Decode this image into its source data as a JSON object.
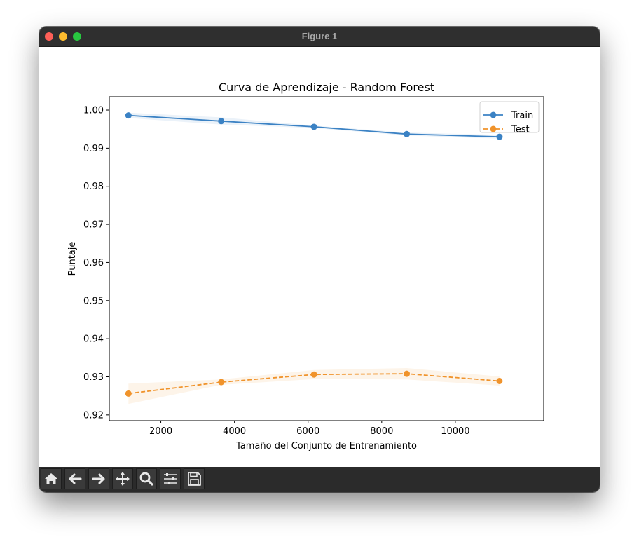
{
  "window": {
    "title": "Figure 1"
  },
  "toolbar": {
    "buttons": [
      {
        "name": "home-button",
        "icon": "home-icon"
      },
      {
        "name": "back-button",
        "icon": "arrow-left-icon"
      },
      {
        "name": "forward-button",
        "icon": "arrow-right-icon"
      },
      {
        "name": "pan-button",
        "icon": "move-icon"
      },
      {
        "name": "zoom-button",
        "icon": "magnifier-icon"
      },
      {
        "name": "configure-subplots-button",
        "icon": "sliders-icon"
      },
      {
        "name": "save-button",
        "icon": "floppy-disk-icon"
      }
    ]
  },
  "chart_data": {
    "type": "line",
    "title": "Curva de Aprendizaje - Random Forest",
    "xlabel": "Tamaño del Conjunto de Entrenamiento",
    "ylabel": "Puntaje",
    "xlim": [
      600,
      12400
    ],
    "ylim": [
      0.9185,
      1.0035
    ],
    "x_ticks": [
      2000,
      4000,
      6000,
      8000,
      10000
    ],
    "y_ticks": [
      0.92,
      0.93,
      0.94,
      0.95,
      0.96,
      0.97,
      0.98,
      0.99,
      1.0
    ],
    "y_tick_labels": [
      "0.92",
      "0.93",
      "0.94",
      "0.95",
      "0.96",
      "0.97",
      "0.98",
      "0.99",
      "1.00"
    ],
    "grid": false,
    "legend_position": "top-right",
    "x": [
      1120,
      3640,
      6160,
      8680,
      11200
    ],
    "series": [
      {
        "name": "Train",
        "color": "#3b82c4",
        "line_style": "solid",
        "marker": "circle",
        "values": [
          0.9986,
          0.9971,
          0.9956,
          0.9937,
          0.993
        ],
        "band_lower": [
          0.9979,
          0.9962,
          0.9953,
          0.9933,
          0.9925
        ],
        "band_upper": [
          0.9993,
          0.9981,
          0.9959,
          0.9941,
          0.9935
        ]
      },
      {
        "name": "Test",
        "color": "#f0932b",
        "line_style": "dashed",
        "marker": "circle",
        "values": [
          0.9256,
          0.9286,
          0.9306,
          0.9308,
          0.9289
        ],
        "band_lower": [
          0.9229,
          0.9279,
          0.9294,
          0.9293,
          0.9277
        ],
        "band_upper": [
          0.9282,
          0.9293,
          0.9318,
          0.9323,
          0.9301
        ]
      }
    ]
  }
}
